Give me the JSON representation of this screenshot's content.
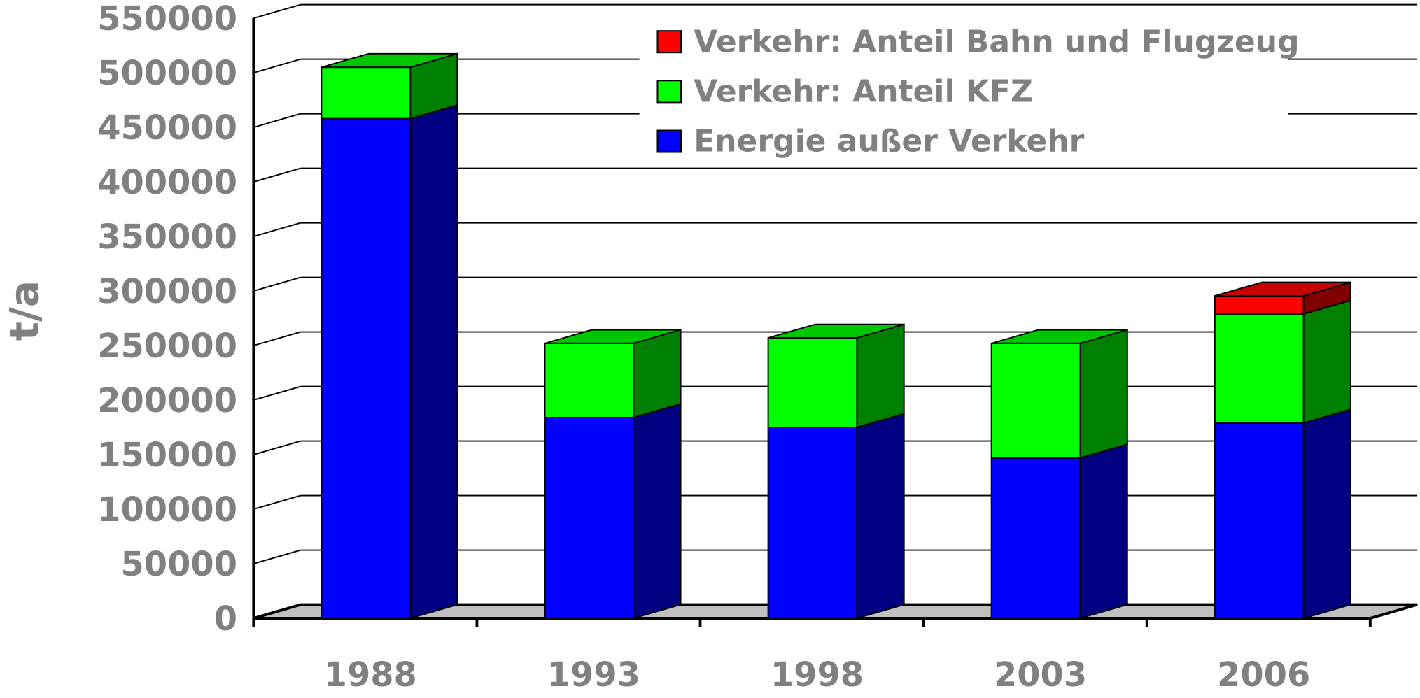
{
  "chart_data": {
    "type": "bar3d_stacked",
    "ylabel": "t/a",
    "categories": [
      "1988",
      "1993",
      "1998",
      "2003",
      "2006"
    ],
    "series": [
      {
        "name": "Energie außer Verkehr",
        "color": "#0000ff",
        "values": [
          458000,
          184000,
          175000,
          147000,
          179000
        ]
      },
      {
        "name": "Verkehr: Anteil KFZ",
        "color": "#00ff00",
        "values": [
          47000,
          68000,
          82000,
          105000,
          100000
        ]
      },
      {
        "name": "Verkehr: Anteil Bahn und Flugzeug",
        "color": "#ff0000",
        "values": [
          0,
          0,
          0,
          0,
          16500
        ]
      }
    ],
    "ylim": [
      0,
      550000
    ],
    "yticks": [
      0,
      50000,
      100000,
      150000,
      200000,
      250000,
      300000,
      350000,
      400000,
      450000,
      500000,
      550000
    ],
    "grid": true,
    "legend": "top-right"
  }
}
